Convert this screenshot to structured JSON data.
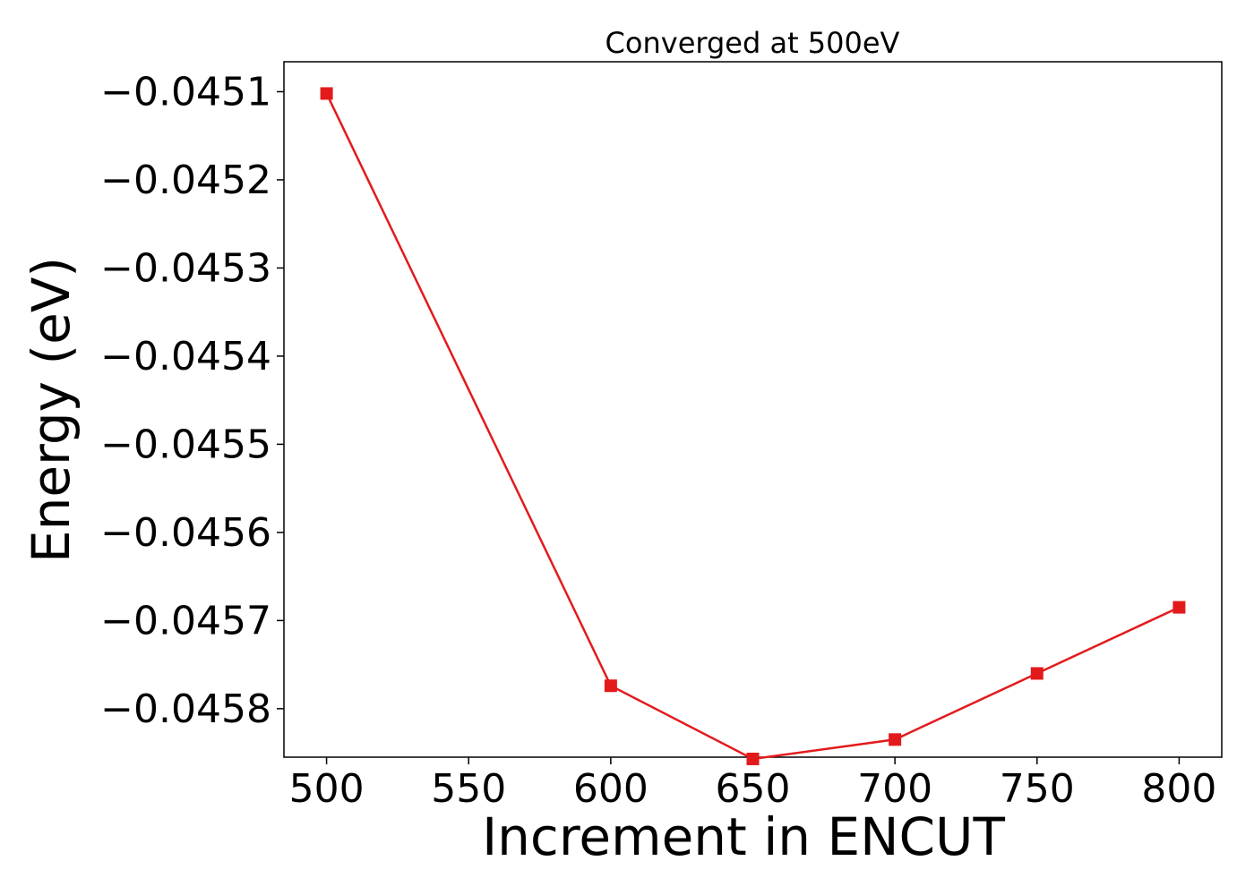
{
  "chart_data": {
    "type": "line",
    "title": "Converged at 500eV",
    "xlabel": "Increment in ENCUT",
    "ylabel": "Energy (eV)",
    "xlim": [
      485,
      815
    ],
    "ylim": [
      -0.045855,
      -0.045066
    ],
    "x_ticks": [
      500,
      550,
      600,
      650,
      700,
      750,
      800
    ],
    "x_tick_labels": [
      "500",
      "550",
      "600",
      "650",
      "700",
      "750",
      "800"
    ],
    "y_ticks": [
      -0.0451,
      -0.0452,
      -0.0453,
      -0.0454,
      -0.0455,
      -0.0456,
      -0.0457,
      -0.0458
    ],
    "y_tick_labels": [
      "−0.0451",
      "−0.0452",
      "−0.0453",
      "−0.0454",
      "−0.0455",
      "−0.0456",
      "−0.0457",
      "−0.0458"
    ],
    "grid": false,
    "series": [
      {
        "color": "#e31a1c",
        "marker": "square",
        "x": [
          500,
          600,
          650,
          700,
          750,
          800
        ],
        "y": [
          -0.045102,
          -0.045774,
          -0.045857,
          -0.045835,
          -0.04576,
          -0.045685
        ]
      }
    ]
  }
}
